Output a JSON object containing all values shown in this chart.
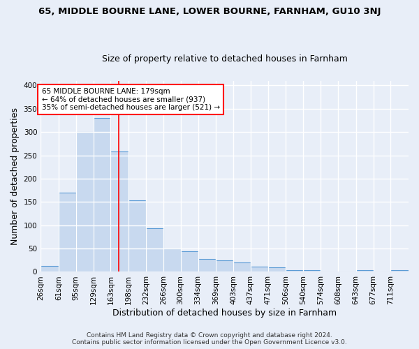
{
  "title": "65, MIDDLE BOURNE LANE, LOWER BOURNE, FARNHAM, GU10 3NJ",
  "subtitle": "Size of property relative to detached houses in Farnham",
  "xlabel": "Distribution of detached houses by size in Farnham",
  "ylabel": "Number of detached properties",
  "bin_edges": [
    26,
    61,
    95,
    129,
    163,
    198,
    232,
    266,
    300,
    334,
    369,
    403,
    437,
    471,
    506,
    540,
    574,
    608,
    643,
    677,
    711,
    746
  ],
  "bar_heights": [
    13,
    170,
    300,
    330,
    258,
    153,
    93,
    50,
    44,
    27,
    25,
    20,
    11,
    10,
    4,
    4,
    1,
    1,
    4,
    0,
    4
  ],
  "bar_color": "#c8d9ef",
  "bar_edge_color": "#5b9bd5",
  "red_line_x": 179,
  "annotation_text": "65 MIDDLE BOURNE LANE: 179sqm\n← 64% of detached houses are smaller (937)\n35% of semi-detached houses are larger (521) →",
  "annotation_box_color": "white",
  "annotation_box_edge_color": "red",
  "footer_line1": "Contains HM Land Registry data © Crown copyright and database right 2024.",
  "footer_line2": "Contains public sector information licensed under the Open Government Licence v3.0.",
  "ylim": [
    0,
    410
  ],
  "yticks": [
    0,
    50,
    100,
    150,
    200,
    250,
    300,
    350,
    400
  ],
  "background_color": "#e8eef8",
  "plot_bg_color": "#e8eef8",
  "grid_color": "white",
  "title_fontsize": 9.5,
  "subtitle_fontsize": 9,
  "axis_label_fontsize": 9,
  "tick_fontsize": 7.5,
  "annotation_fontsize": 7.5,
  "footer_fontsize": 6.5
}
